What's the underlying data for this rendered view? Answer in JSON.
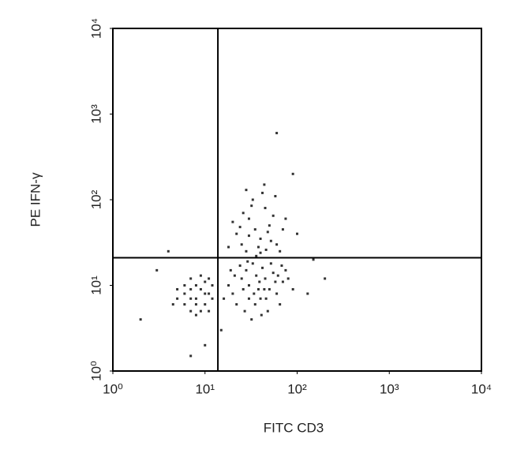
{
  "chart_data": {
    "type": "scatter",
    "xlabel": "FITC CD3",
    "ylabel": "PE IFN-γ",
    "log_x": true,
    "log_y": true,
    "xlim": [
      1,
      10000
    ],
    "ylim": [
      1,
      10000
    ],
    "xticks": [
      {
        "value": 1,
        "label": "10⁰"
      },
      {
        "value": 10,
        "label": "10¹"
      },
      {
        "value": 100,
        "label": "10²"
      },
      {
        "value": 1000,
        "label": "10³"
      },
      {
        "value": 10000,
        "label": "10⁴"
      }
    ],
    "yticks": [
      {
        "value": 1,
        "label": "10⁰"
      },
      {
        "value": 10,
        "label": "10¹"
      },
      {
        "value": 100,
        "label": "10²"
      },
      {
        "value": 1000,
        "label": "10³"
      },
      {
        "value": 10000,
        "label": "10⁴"
      }
    ],
    "quadrant_x": 13.8,
    "quadrant_y": 21,
    "color": "#333333",
    "x": [
      8,
      6,
      10,
      9,
      7,
      11,
      5,
      8,
      12,
      9,
      6,
      7,
      10,
      11,
      8,
      5,
      4.5,
      7,
      9,
      6,
      10,
      12,
      7,
      8,
      11,
      20,
      30,
      40,
      25,
      35,
      50,
      28,
      45,
      60,
      22,
      33,
      38,
      55,
      70,
      27,
      42,
      18,
      65,
      30,
      48,
      36,
      24,
      80,
      52,
      16,
      44,
      58,
      32,
      75,
      26,
      39,
      62,
      21,
      46,
      34,
      90,
      29,
      41,
      68,
      19,
      25,
      35,
      30,
      40,
      50,
      22,
      45,
      28,
      60,
      33,
      38,
      55,
      20,
      42,
      30,
      48,
      65,
      26,
      36,
      52,
      18,
      44,
      70,
      32,
      58,
      24,
      40,
      75,
      28,
      46,
      3,
      4,
      2,
      7,
      100,
      150,
      130,
      60,
      15,
      200,
      90,
      10
    ],
    "y": [
      7,
      8,
      6,
      9,
      5,
      8,
      7,
      10,
      7,
      5,
      6,
      12,
      11,
      5,
      6,
      9,
      6,
      9,
      13,
      10,
      8,
      10,
      7,
      4.5,
      12,
      8,
      10,
      7,
      12,
      6,
      9,
      15,
      12,
      8,
      6,
      18,
      9,
      14,
      11,
      5,
      16,
      10,
      6,
      7,
      5,
      13,
      17,
      12,
      18,
      7,
      9,
      11,
      4,
      15,
      9,
      11,
      13,
      13,
      7,
      8,
      9,
      19,
      4.5,
      17,
      15,
      30,
      45,
      60,
      35,
      50,
      40,
      80,
      25,
      30,
      100,
      28,
      65,
      55,
      120,
      38,
      42,
      25,
      70,
      22,
      33,
      28,
      150,
      45,
      85,
      110,
      48,
      24,
      60,
      130,
      26,
      15,
      25,
      4,
      1.5,
      40,
      20,
      8,
      600,
      3,
      12,
      200,
      2
    ]
  }
}
